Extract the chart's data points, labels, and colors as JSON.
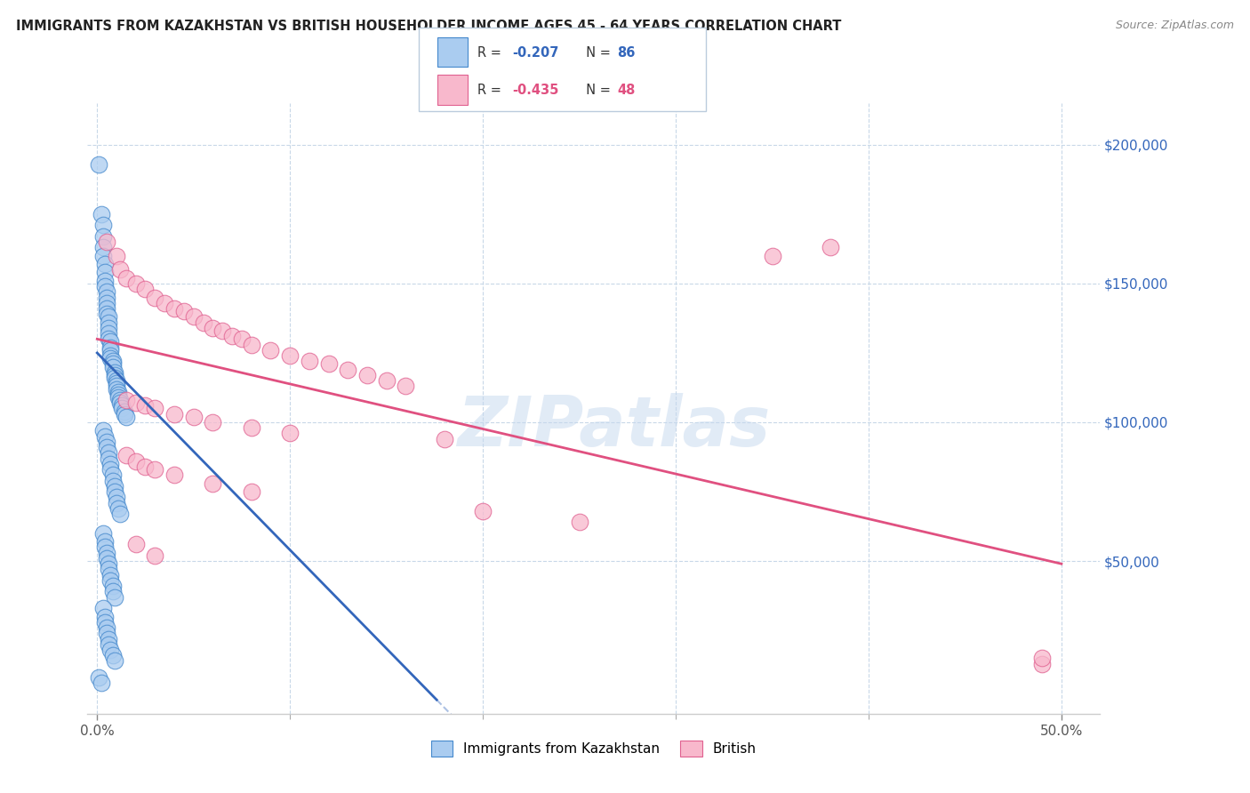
{
  "title": "IMMIGRANTS FROM KAZAKHSTAN VS BRITISH HOUSEHOLDER INCOME AGES 45 - 64 YEARS CORRELATION CHART",
  "source": "Source: ZipAtlas.com",
  "xlabel_ticks_shown": [
    "0.0%",
    "50.0%"
  ],
  "xlabel_vals_shown": [
    0.0,
    0.5
  ],
  "xlabel_minor_vals": [
    0.1,
    0.2,
    0.3,
    0.4
  ],
  "ylabel_ticks": [
    "$50,000",
    "$100,000",
    "$150,000",
    "$200,000"
  ],
  "ylabel_vals": [
    50000,
    100000,
    150000,
    200000
  ],
  "xlim": [
    -0.005,
    0.52
  ],
  "ylim": [
    -5000,
    215000
  ],
  "legend_label_blue": "Immigrants from Kazakhstan",
  "legend_label_pink": "British",
  "watermark": "ZIPatlas",
  "blue_color": "#aaccf0",
  "blue_edge_color": "#4488cc",
  "pink_color": "#f8b8cc",
  "pink_edge_color": "#e06090",
  "blue_scatter": [
    [
      0.001,
      193000
    ],
    [
      0.002,
      175000
    ],
    [
      0.003,
      171000
    ],
    [
      0.003,
      167000
    ],
    [
      0.003,
      163000
    ],
    [
      0.003,
      160000
    ],
    [
      0.004,
      157000
    ],
    [
      0.004,
      154000
    ],
    [
      0.004,
      151000
    ],
    [
      0.004,
      149000
    ],
    [
      0.005,
      147000
    ],
    [
      0.005,
      145000
    ],
    [
      0.005,
      143000
    ],
    [
      0.005,
      141000
    ],
    [
      0.005,
      139000
    ],
    [
      0.006,
      138000
    ],
    [
      0.006,
      136000
    ],
    [
      0.006,
      134000
    ],
    [
      0.006,
      132000
    ],
    [
      0.006,
      130000
    ],
    [
      0.007,
      129000
    ],
    [
      0.007,
      127000
    ],
    [
      0.007,
      126000
    ],
    [
      0.007,
      124000
    ],
    [
      0.007,
      123000
    ],
    [
      0.008,
      122000
    ],
    [
      0.008,
      121000
    ],
    [
      0.008,
      120000
    ],
    [
      0.009,
      118000
    ],
    [
      0.009,
      117000
    ],
    [
      0.009,
      116000
    ],
    [
      0.01,
      115000
    ],
    [
      0.01,
      114000
    ],
    [
      0.01,
      113000
    ],
    [
      0.01,
      112000
    ],
    [
      0.011,
      111000
    ],
    [
      0.011,
      110000
    ],
    [
      0.011,
      109000
    ],
    [
      0.012,
      108000
    ],
    [
      0.012,
      107000
    ],
    [
      0.013,
      106000
    ],
    [
      0.013,
      105000
    ],
    [
      0.014,
      104000
    ],
    [
      0.014,
      103000
    ],
    [
      0.015,
      102000
    ],
    [
      0.003,
      97000
    ],
    [
      0.004,
      95000
    ],
    [
      0.005,
      93000
    ],
    [
      0.005,
      91000
    ],
    [
      0.006,
      89000
    ],
    [
      0.006,
      87000
    ],
    [
      0.007,
      85000
    ],
    [
      0.007,
      83000
    ],
    [
      0.008,
      81000
    ],
    [
      0.008,
      79000
    ],
    [
      0.009,
      77000
    ],
    [
      0.009,
      75000
    ],
    [
      0.01,
      73000
    ],
    [
      0.01,
      71000
    ],
    [
      0.011,
      69000
    ],
    [
      0.012,
      67000
    ],
    [
      0.003,
      60000
    ],
    [
      0.004,
      57000
    ],
    [
      0.004,
      55000
    ],
    [
      0.005,
      53000
    ],
    [
      0.005,
      51000
    ],
    [
      0.006,
      49000
    ],
    [
      0.006,
      47000
    ],
    [
      0.007,
      45000
    ],
    [
      0.007,
      43000
    ],
    [
      0.008,
      41000
    ],
    [
      0.008,
      39000
    ],
    [
      0.009,
      37000
    ],
    [
      0.003,
      33000
    ],
    [
      0.004,
      30000
    ],
    [
      0.004,
      28000
    ],
    [
      0.005,
      26000
    ],
    [
      0.005,
      24000
    ],
    [
      0.006,
      22000
    ],
    [
      0.006,
      20000
    ],
    [
      0.007,
      18000
    ],
    [
      0.008,
      16000
    ],
    [
      0.009,
      14000
    ],
    [
      0.001,
      8000
    ],
    [
      0.002,
      6000
    ]
  ],
  "pink_scatter": [
    [
      0.005,
      165000
    ],
    [
      0.01,
      160000
    ],
    [
      0.012,
      155000
    ],
    [
      0.015,
      152000
    ],
    [
      0.02,
      150000
    ],
    [
      0.025,
      148000
    ],
    [
      0.03,
      145000
    ],
    [
      0.035,
      143000
    ],
    [
      0.04,
      141000
    ],
    [
      0.045,
      140000
    ],
    [
      0.05,
      138000
    ],
    [
      0.055,
      136000
    ],
    [
      0.06,
      134000
    ],
    [
      0.065,
      133000
    ],
    [
      0.07,
      131000
    ],
    [
      0.075,
      130000
    ],
    [
      0.08,
      128000
    ],
    [
      0.09,
      126000
    ],
    [
      0.1,
      124000
    ],
    [
      0.11,
      122000
    ],
    [
      0.12,
      121000
    ],
    [
      0.13,
      119000
    ],
    [
      0.14,
      117000
    ],
    [
      0.15,
      115000
    ],
    [
      0.16,
      113000
    ],
    [
      0.015,
      108000
    ],
    [
      0.02,
      107000
    ],
    [
      0.025,
      106000
    ],
    [
      0.03,
      105000
    ],
    [
      0.04,
      103000
    ],
    [
      0.05,
      102000
    ],
    [
      0.06,
      100000
    ],
    [
      0.08,
      98000
    ],
    [
      0.1,
      96000
    ],
    [
      0.18,
      94000
    ],
    [
      0.015,
      88000
    ],
    [
      0.02,
      86000
    ],
    [
      0.025,
      84000
    ],
    [
      0.03,
      83000
    ],
    [
      0.04,
      81000
    ],
    [
      0.06,
      78000
    ],
    [
      0.08,
      75000
    ],
    [
      0.35,
      160000
    ],
    [
      0.38,
      163000
    ],
    [
      0.49,
      13000
    ],
    [
      0.49,
      15000
    ],
    [
      0.02,
      56000
    ],
    [
      0.03,
      52000
    ],
    [
      0.2,
      68000
    ],
    [
      0.25,
      64000
    ]
  ],
  "blue_trend": [
    0.0,
    125000,
    0.5,
    -230000
  ],
  "pink_trend": [
    0.0,
    130000,
    0.5,
    49000
  ],
  "blue_line_color": "#3366bb",
  "pink_line_color": "#e05080"
}
